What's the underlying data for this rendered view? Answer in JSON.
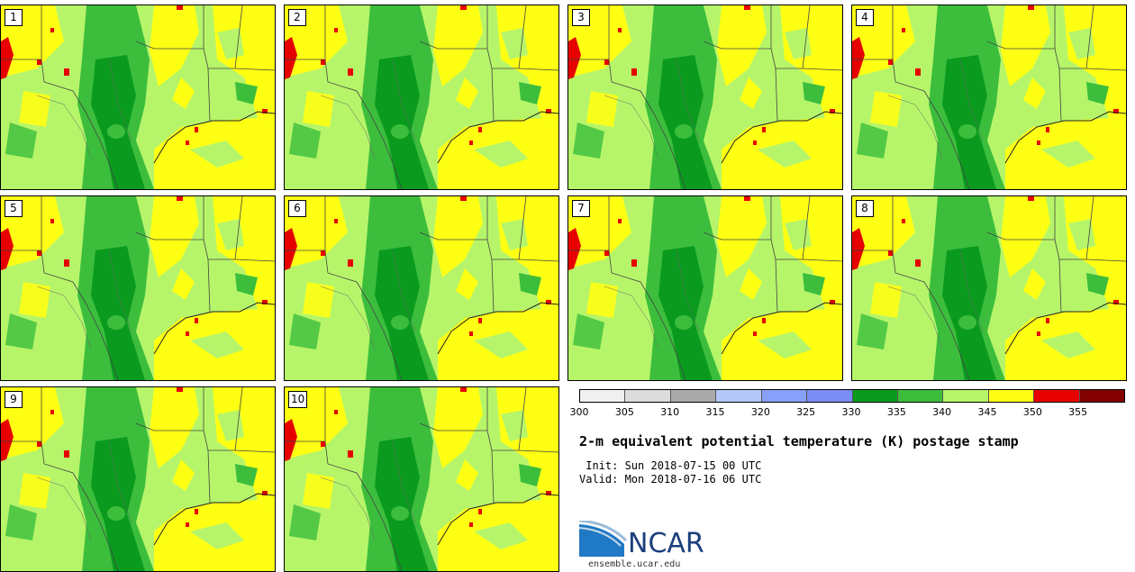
{
  "panels": [
    {
      "label": "1"
    },
    {
      "label": "2"
    },
    {
      "label": "3"
    },
    {
      "label": "4"
    },
    {
      "label": "5"
    },
    {
      "label": "6"
    },
    {
      "label": "7"
    },
    {
      "label": "8"
    },
    {
      "label": "9"
    },
    {
      "label": "10"
    }
  ],
  "colorbar": {
    "bins": [
      {
        "color": "#f0f0f0"
      },
      {
        "color": "#dcdcdc"
      },
      {
        "color": "#aaaaaa"
      },
      {
        "color": "#b4c8fa"
      },
      {
        "color": "#87a0fa"
      },
      {
        "color": "#7b8cf5"
      },
      {
        "color": "#0a9b1e"
      },
      {
        "color": "#3cbe3c"
      },
      {
        "color": "#b6f56a"
      },
      {
        "color": "#ffff14"
      },
      {
        "color": "#e60000"
      },
      {
        "color": "#820000"
      }
    ],
    "ticks": [
      "300",
      "305",
      "310",
      "315",
      "320",
      "325",
      "330",
      "335",
      "340",
      "345",
      "350",
      "355"
    ]
  },
  "title": "2-m equivalent potential temperature (K) postage stamp",
  "init": " Init: Sun 2018-07-15 00 UTC",
  "valid": "Valid: Mon 2018-07-16 06 UTC",
  "logo": {
    "name": "NCAR"
  },
  "url": "ensemble.ucar.edu"
}
